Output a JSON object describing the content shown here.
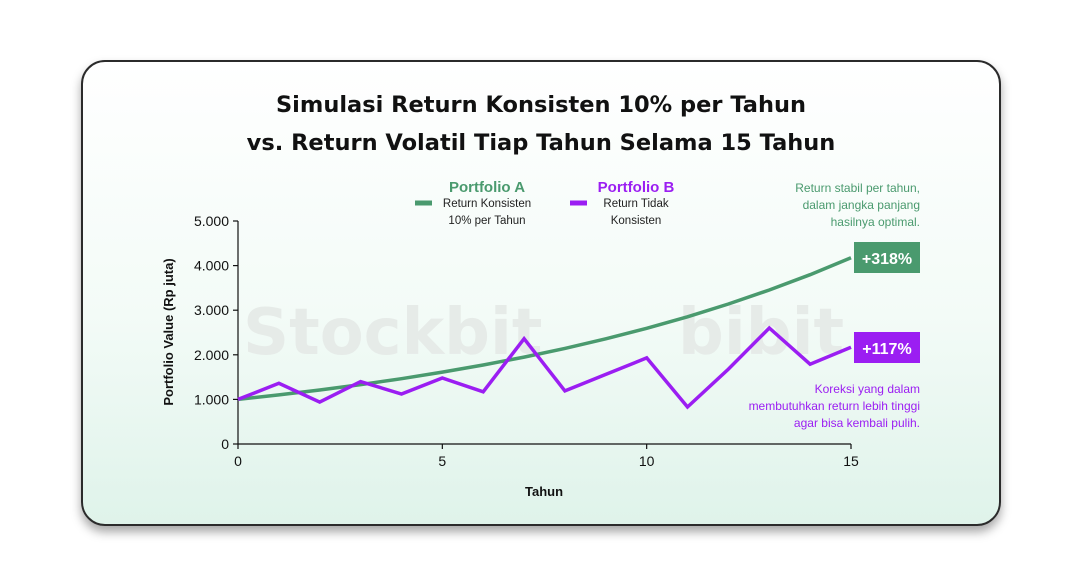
{
  "title_line1": "Simulasi Return Konsisten 10% per Tahun",
  "title_line2": "vs. Return Volatil Tiap Tahun Selama 15 Tahun",
  "watermarks": [
    "Stockbit",
    "bibit"
  ],
  "colors": {
    "portfolio_a": "#4a9a6e",
    "portfolio_b": "#9b1ef2"
  },
  "legend": {
    "a_name": "Portfolio A",
    "a_desc1": "Return Konsisten",
    "a_desc2": "10% per Tahun",
    "b_name": "Portfolio B",
    "b_desc1": "Return Tidak",
    "b_desc2": "Konsisten"
  },
  "annotations": {
    "a_note": [
      "Return stabil per tahun,",
      "dalam jangka panjang",
      "hasilnya optimal."
    ],
    "a_badge": "+318%",
    "b_badge": "+117%",
    "b_note": [
      "Koreksi yang dalam",
      "membutuhkan return lebih tinggi",
      "agar bisa kembali pulih."
    ]
  },
  "chart_data": {
    "type": "line",
    "title": "Simulasi Return Konsisten 10% per Tahun vs. Return Volatil Tiap Tahun Selama 15 Tahun",
    "xlabel": "Tahun",
    "ylabel": "Portfolio Value (Rp juta)",
    "xlim": [
      0,
      15
    ],
    "ylim": [
      0,
      5000
    ],
    "x_ticks": [
      0,
      5,
      10,
      15
    ],
    "x_tick_labels": [
      "0",
      "5",
      "10",
      "15"
    ],
    "y_ticks": [
      0,
      1000,
      2000,
      3000,
      4000,
      5000
    ],
    "y_tick_labels": [
      "0",
      "1.000",
      "2.000",
      "3.000",
      "4.000",
      "5.000"
    ],
    "x": [
      0,
      1,
      2,
      3,
      4,
      5,
      6,
      7,
      8,
      9,
      10,
      11,
      12,
      13,
      14,
      15
    ],
    "series": [
      {
        "name": "Portfolio A",
        "values": [
          1000,
          1100,
          1210,
          1331,
          1464,
          1611,
          1772,
          1949,
          2144,
          2358,
          2594,
          2853,
          3138,
          3452,
          3797,
          4177
        ]
      },
      {
        "name": "Portfolio B",
        "values": [
          1000,
          1360,
          940,
          1400,
          1120,
          1480,
          1170,
          2360,
          1190,
          1560,
          1930,
          830,
          1680,
          2600,
          1790,
          2170
        ]
      }
    ],
    "grid": false,
    "legend_position": "top"
  }
}
